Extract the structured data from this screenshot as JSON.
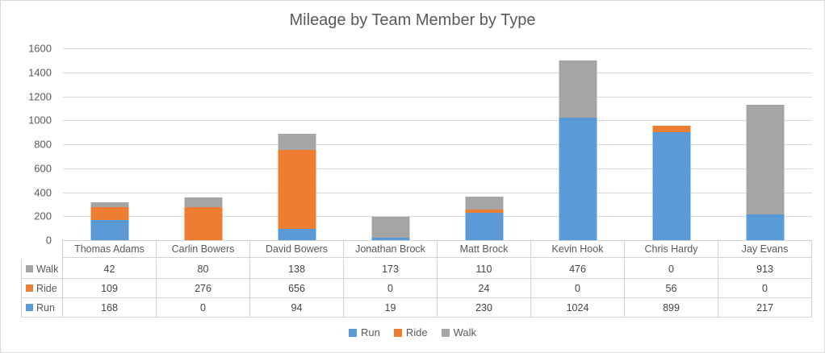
{
  "chart_data": {
    "type": "bar",
    "stacked": true,
    "title": "Mileage by Team Member by Type",
    "categories": [
      "Thomas Adams",
      "Carlin Bowers",
      "David Bowers",
      "Jonathan Brock",
      "Matt Brock",
      "Kevin Hook",
      "Chris Hardy",
      "Jay Evans"
    ],
    "series": [
      {
        "name": "Run",
        "color": "#5B9BD5",
        "values": [
          168,
          0,
          94,
          19,
          230,
          1024,
          899,
          217
        ]
      },
      {
        "name": "Ride",
        "color": "#ED7D31",
        "values": [
          109,
          276,
          656,
          0,
          24,
          0,
          56,
          0
        ]
      },
      {
        "name": "Walk",
        "color": "#A5A5A5",
        "values": [
          42,
          80,
          138,
          173,
          110,
          476,
          0,
          913
        ]
      }
    ],
    "xlabel": "",
    "ylabel": "",
    "ylim": [
      0,
      1600
    ],
    "yticks": [
      0,
      200,
      400,
      600,
      800,
      1000,
      1200,
      1400,
      1600
    ],
    "grid": "horizontal",
    "legend_position": "bottom",
    "legend_order": [
      "Run",
      "Ride",
      "Walk"
    ],
    "data_table": {
      "shown": true,
      "row_order_top_to_bottom": [
        "Walk",
        "Ride",
        "Run"
      ]
    },
    "colors": {
      "title_text": "#595959",
      "axis_text": "#595959",
      "gridline": "#DADADA",
      "table_border": "#D2D2D2"
    }
  }
}
